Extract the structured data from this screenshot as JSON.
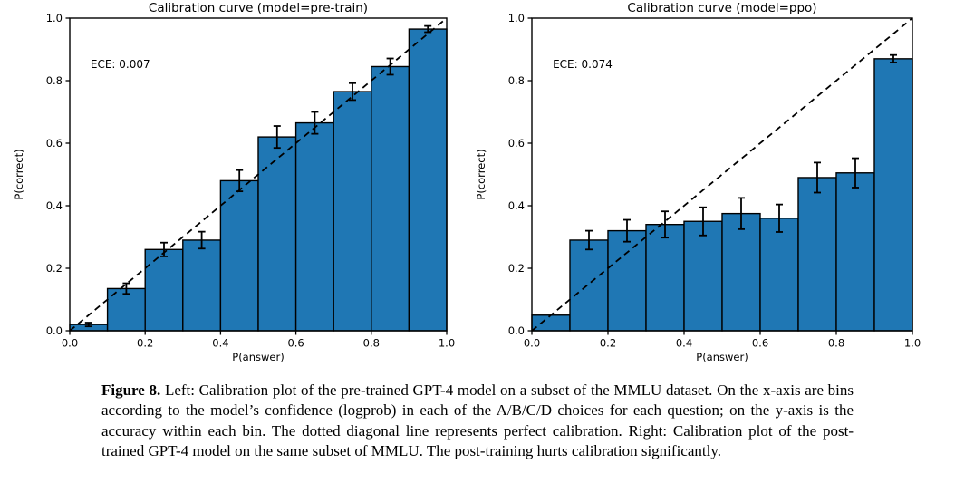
{
  "figure": {
    "caption_label": "Figure 8.",
    "caption_text": "Left: Calibration plot of the pre-trained GPT-4 model on a subset of the MMLU dataset. On the x-axis are bins according to the model’s confidence (logprob) in each of the A/B/C/D choices for each question; on the y-axis is the accuracy within each bin. The dotted diagonal line represents perfect calibration. Right: Calibration plot of the post-trained GPT-4 model on the same subset of MMLU. The post-training hurts calibration significantly."
  },
  "colors": {
    "bar_fill": "#1f77b4",
    "bar_edge": "#000000",
    "diagonal_line": "#000000",
    "axis": "#000000",
    "background": "#ffffff"
  },
  "chart_data": [
    {
      "type": "bar",
      "title": "Calibration curve (model=pre-train)",
      "annotation": "ECE: 0.007",
      "xlabel": "P(answer)",
      "ylabel": "P(correct)",
      "xlim": [
        0.0,
        1.0
      ],
      "ylim": [
        0.0,
        1.0
      ],
      "xticks": [
        "0.0",
        "0.2",
        "0.4",
        "0.6",
        "0.8",
        "1.0"
      ],
      "yticks": [
        "0.0",
        "0.2",
        "0.4",
        "0.6",
        "0.8",
        "1.0"
      ],
      "grid": false,
      "legend": null,
      "diagonal_reference_line": true,
      "bin_edges": [
        0.0,
        0.1,
        0.2,
        0.3,
        0.4,
        0.5,
        0.6,
        0.7,
        0.8,
        0.9,
        1.0
      ],
      "values": [
        0.02,
        0.135,
        0.26,
        0.29,
        0.48,
        0.62,
        0.665,
        0.765,
        0.845,
        0.965
      ],
      "errors": [
        0.006,
        0.017,
        0.022,
        0.027,
        0.034,
        0.035,
        0.035,
        0.027,
        0.026,
        0.01
      ]
    },
    {
      "type": "bar",
      "title": "Calibration curve (model=ppo)",
      "annotation": "ECE: 0.074",
      "xlabel": "P(answer)",
      "ylabel": "P(correct)",
      "xlim": [
        0.0,
        1.0
      ],
      "ylim": [
        0.0,
        1.0
      ],
      "xticks": [
        "0.0",
        "0.2",
        "0.4",
        "0.6",
        "0.8",
        "1.0"
      ],
      "yticks": [
        "0.0",
        "0.2",
        "0.4",
        "0.6",
        "0.8",
        "1.0"
      ],
      "grid": false,
      "legend": null,
      "diagonal_reference_line": true,
      "bin_edges": [
        0.0,
        0.1,
        0.2,
        0.3,
        0.4,
        0.5,
        0.6,
        0.7,
        0.8,
        0.9,
        1.0
      ],
      "values": [
        0.05,
        0.29,
        0.32,
        0.34,
        0.35,
        0.375,
        0.36,
        0.49,
        0.505,
        0.87
      ],
      "errors": [
        0,
        0.03,
        0.035,
        0.042,
        0.045,
        0.05,
        0.044,
        0.048,
        0.047,
        0.012
      ]
    }
  ]
}
